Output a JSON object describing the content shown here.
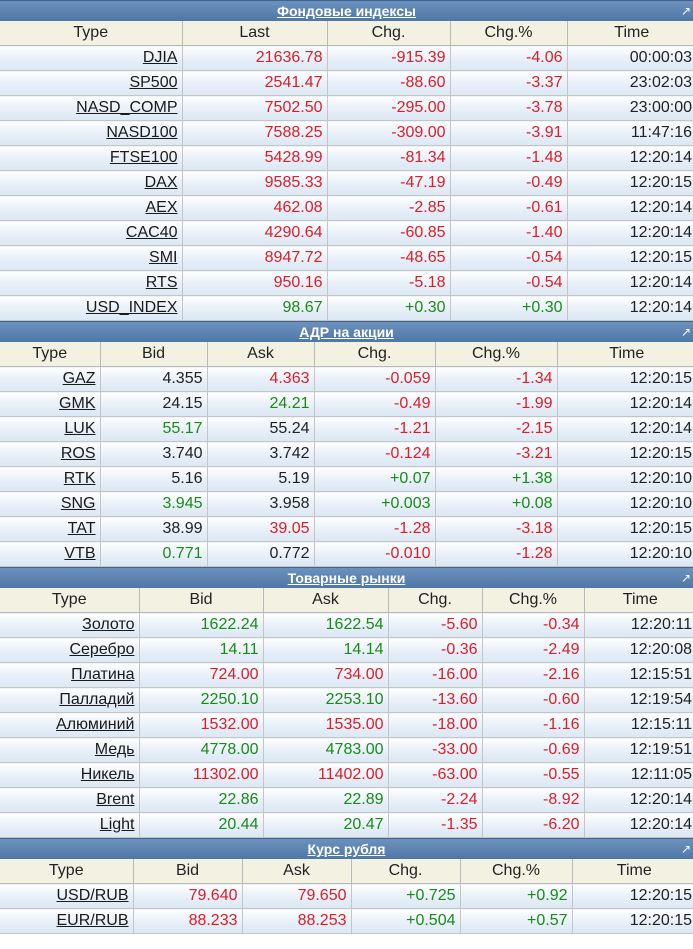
{
  "colors": {
    "header_bg": "#5b82b0",
    "up": "#1a8a1a",
    "down": "#d9202a"
  },
  "sections": [
    {
      "title": "Фондовые индексы",
      "key": "indices",
      "widths": [
        182,
        145,
        123,
        117,
        126
      ],
      "columns": [
        "Type",
        "Last",
        "Chg.",
        "Chg.%",
        "Time"
      ],
      "fields": [
        "last",
        "chg",
        "pct",
        "time"
      ],
      "rows": [
        {
          "sym": "DJIA",
          "last": "21636.78",
          "chg": "-915.39",
          "pct": "-4.06",
          "time": "00:00:03",
          "c": [
            "d",
            "d",
            "d",
            "n"
          ]
        },
        {
          "sym": "SP500",
          "last": "2541.47",
          "chg": "-88.60",
          "pct": "-3.37",
          "time": "23:02:03",
          "c": [
            "d",
            "d",
            "d",
            "n"
          ]
        },
        {
          "sym": "NASD_COMP",
          "last": "7502.50",
          "chg": "-295.00",
          "pct": "-3.78",
          "time": "23:00:00",
          "c": [
            "d",
            "d",
            "d",
            "n"
          ]
        },
        {
          "sym": "NASD100",
          "last": "7588.25",
          "chg": "-309.00",
          "pct": "-3.91",
          "time": "11:47:16",
          "c": [
            "d",
            "d",
            "d",
            "n"
          ]
        },
        {
          "sym": "FTSE100",
          "last": "5428.99",
          "chg": "-81.34",
          "pct": "-1.48",
          "time": "12:20:14",
          "c": [
            "d",
            "d",
            "d",
            "n"
          ]
        },
        {
          "sym": "DAX",
          "last": "9585.33",
          "chg": "-47.19",
          "pct": "-0.49",
          "time": "12:20:15",
          "c": [
            "d",
            "d",
            "d",
            "n"
          ]
        },
        {
          "sym": "AEX",
          "last": "462.08",
          "chg": "-2.85",
          "pct": "-0.61",
          "time": "12:20:14",
          "c": [
            "d",
            "d",
            "d",
            "n"
          ]
        },
        {
          "sym": "CAC40",
          "last": "4290.64",
          "chg": "-60.85",
          "pct": "-1.40",
          "time": "12:20:14",
          "c": [
            "d",
            "d",
            "d",
            "n"
          ]
        },
        {
          "sym": "SMI",
          "last": "8947.72",
          "chg": "-48.65",
          "pct": "-0.54",
          "time": "12:20:15",
          "c": [
            "d",
            "d",
            "d",
            "n"
          ]
        },
        {
          "sym": "RTS",
          "last": "950.16",
          "chg": "-5.18",
          "pct": "-0.54",
          "time": "12:20:14",
          "c": [
            "d",
            "d",
            "d",
            "n"
          ]
        },
        {
          "sym": "USD_INDEX",
          "last": "98.67",
          "chg": "+0.30",
          "pct": "+0.30",
          "time": "12:20:14",
          "c": [
            "u",
            "u",
            "u",
            "n"
          ]
        }
      ]
    },
    {
      "title": "АДР на акции",
      "key": "adr",
      "widths": [
        100,
        107,
        107,
        121,
        122,
        136
      ],
      "columns": [
        "Type",
        "Bid",
        "Ask",
        "Chg.",
        "Chg.%",
        "Time"
      ],
      "fields": [
        "bid",
        "ask",
        "chg",
        "pct",
        "time"
      ],
      "rows": [
        {
          "sym": "GAZ",
          "bid": "4.355",
          "ask": "4.363",
          "chg": "-0.059",
          "pct": "-1.34",
          "time": "12:20:15",
          "c": [
            "n",
            "d",
            "d",
            "d",
            "n"
          ]
        },
        {
          "sym": "GMK",
          "bid": "24.15",
          "ask": "24.21",
          "chg": "-0.49",
          "pct": "-1.99",
          "time": "12:20:14",
          "c": [
            "n",
            "u",
            "d",
            "d",
            "n"
          ]
        },
        {
          "sym": "LUK",
          "bid": "55.17",
          "ask": "55.24",
          "chg": "-1.21",
          "pct": "-2.15",
          "time": "12:20:14",
          "c": [
            "u",
            "n",
            "d",
            "d",
            "n"
          ]
        },
        {
          "sym": "ROS",
          "bid": "3.740",
          "ask": "3.742",
          "chg": "-0.124",
          "pct": "-3.21",
          "time": "12:20:15",
          "c": [
            "n",
            "n",
            "d",
            "d",
            "n"
          ]
        },
        {
          "sym": "RTK",
          "bid": "5.16",
          "ask": "5.19",
          "chg": "+0.07",
          "pct": "+1.38",
          "time": "12:20:10",
          "c": [
            "n",
            "n",
            "u",
            "u",
            "n"
          ]
        },
        {
          "sym": "SNG",
          "bid": "3.945",
          "ask": "3.958",
          "chg": "+0.003",
          "pct": "+0.08",
          "time": "12:20:10",
          "c": [
            "u",
            "n",
            "u",
            "u",
            "n"
          ]
        },
        {
          "sym": "TAT",
          "bid": "38.99",
          "ask": "39.05",
          "chg": "-1.28",
          "pct": "-3.18",
          "time": "12:20:15",
          "c": [
            "n",
            "d",
            "d",
            "d",
            "n"
          ]
        },
        {
          "sym": "VTB",
          "bid": "0.771",
          "ask": "0.772",
          "chg": "-0.010",
          "pct": "-1.28",
          "time": "12:20:10",
          "c": [
            "u",
            "n",
            "d",
            "d",
            "n"
          ]
        }
      ]
    },
    {
      "title": "Товарные рынки",
      "key": "commodities",
      "widths": [
        139,
        124,
        125,
        94,
        102,
        109
      ],
      "columns": [
        "Type",
        "Bid",
        "Ask",
        "Chg.",
        "Chg.%",
        "Time"
      ],
      "fields": [
        "bid",
        "ask",
        "chg",
        "pct",
        "time"
      ],
      "rows": [
        {
          "sym": "Золото",
          "bid": "1622.24",
          "ask": "1622.54",
          "chg": "-5.60",
          "pct": "-0.34",
          "time": "12:20:11",
          "c": [
            "u",
            "u",
            "d",
            "d",
            "n"
          ]
        },
        {
          "sym": "Серебро",
          "bid": "14.11",
          "ask": "14.14",
          "chg": "-0.36",
          "pct": "-2.49",
          "time": "12:20:08",
          "c": [
            "u",
            "u",
            "d",
            "d",
            "n"
          ]
        },
        {
          "sym": "Платина",
          "bid": "724.00",
          "ask": "734.00",
          "chg": "-16.00",
          "pct": "-2.16",
          "time": "12:15:51",
          "c": [
            "d",
            "d",
            "d",
            "d",
            "n"
          ]
        },
        {
          "sym": "Палладий",
          "bid": "2250.10",
          "ask": "2253.10",
          "chg": "-13.60",
          "pct": "-0.60",
          "time": "12:19:54",
          "c": [
            "u",
            "u",
            "d",
            "d",
            "n"
          ]
        },
        {
          "sym": "Алюминий",
          "bid": "1532.00",
          "ask": "1535.00",
          "chg": "-18.00",
          "pct": "-1.16",
          "time": "12:15:11",
          "c": [
            "d",
            "d",
            "d",
            "d",
            "n"
          ]
        },
        {
          "sym": "Медь",
          "bid": "4778.00",
          "ask": "4783.00",
          "chg": "-33.00",
          "pct": "-0.69",
          "time": "12:19:51",
          "c": [
            "u",
            "u",
            "d",
            "d",
            "n"
          ]
        },
        {
          "sym": "Никель",
          "bid": "11302.00",
          "ask": "11402.00",
          "chg": "-63.00",
          "pct": "-0.55",
          "time": "12:11:05",
          "c": [
            "d",
            "d",
            "d",
            "d",
            "n"
          ]
        },
        {
          "sym": "Brent",
          "bid": "22.86",
          "ask": "22.89",
          "chg": "-2.24",
          "pct": "-8.92",
          "time": "12:20:14",
          "c": [
            "u",
            "u",
            "d",
            "d",
            "n"
          ]
        },
        {
          "sym": "Light",
          "bid": "20.44",
          "ask": "20.47",
          "chg": "-1.35",
          "pct": "-6.20",
          "time": "12:20:14",
          "c": [
            "u",
            "u",
            "d",
            "d",
            "n"
          ]
        }
      ]
    },
    {
      "title": "Курс рубля",
      "key": "ruble",
      "widths": [
        133,
        109,
        109,
        109,
        112,
        121
      ],
      "columns": [
        "Type",
        "Bid",
        "Ask",
        "Chg.",
        "Chg.%",
        "Time"
      ],
      "fields": [
        "bid",
        "ask",
        "chg",
        "pct",
        "time"
      ],
      "rows": [
        {
          "sym": "USD/RUB",
          "bid": "79.640",
          "ask": "79.650",
          "chg": "+0.725",
          "pct": "+0.92",
          "time": "12:20:15",
          "c": [
            "d",
            "d",
            "u",
            "u",
            "n"
          ]
        },
        {
          "sym": "EUR/RUB",
          "bid": "88.233",
          "ask": "88.253",
          "chg": "+0.504",
          "pct": "+0.57",
          "time": "12:20:15",
          "c": [
            "d",
            "d",
            "u",
            "u",
            "n"
          ]
        }
      ]
    }
  ]
}
